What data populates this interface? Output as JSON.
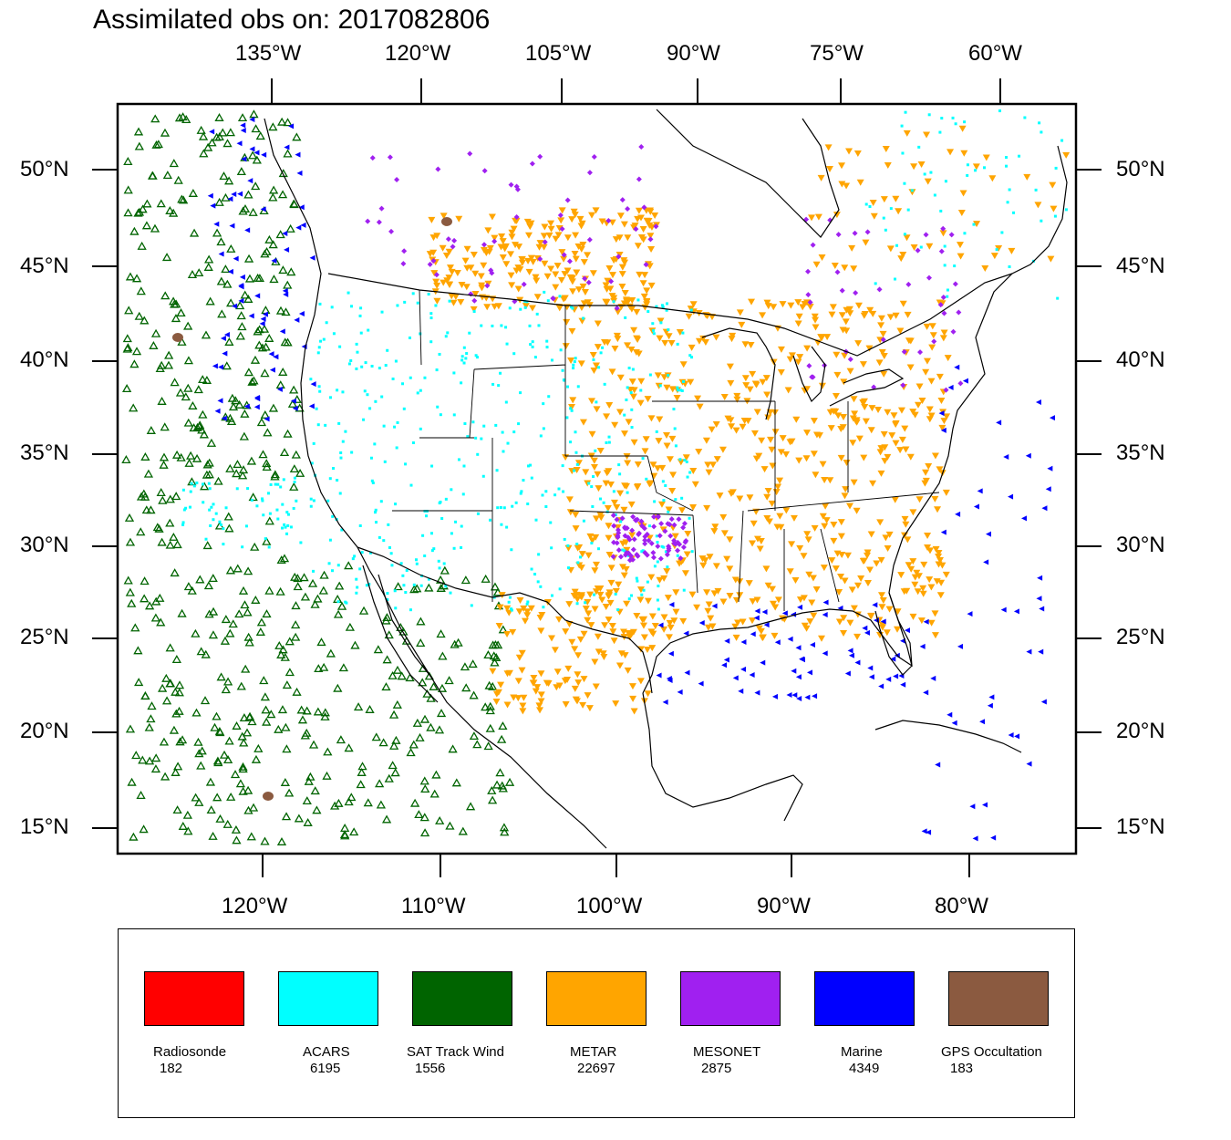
{
  "title": "Assimilated obs on: 2017082806",
  "top_axis_labels": [
    "135°W",
    "120°W",
    "105°W",
    "90°W",
    "75°W",
    "60°W"
  ],
  "bottom_axis_labels": [
    "120°W",
    "110°W",
    "100°W",
    "90°W",
    "80°W"
  ],
  "left_axis_labels": [
    "50°N",
    "45°N",
    "40°N",
    "35°N",
    "30°N",
    "25°N",
    "20°N",
    "15°N"
  ],
  "right_axis_labels": [
    "50°N",
    "45°N",
    "40°N",
    "35°N",
    "30°N",
    "25°N",
    "20°N",
    "15°N"
  ],
  "map": {
    "region": "Continental United States, southern Canada, Mexico and adjacent oceans",
    "lat_range": [
      14,
      54
    ],
    "lon_range": [
      -128,
      -74
    ]
  },
  "legend": [
    {
      "name": "Radiosonde",
      "count": "182",
      "color": "#ff0000",
      "symbol": "none"
    },
    {
      "name": "ACARS",
      "count": "6195",
      "color": "#00ffff",
      "symbol": "square"
    },
    {
      "name": "SAT Track Wind",
      "count": "1556",
      "color": "#006400",
      "symbol": "triangle-up"
    },
    {
      "name": "METAR",
      "count": "22697",
      "color": "#ffa500",
      "symbol": "triangle-down"
    },
    {
      "name": "MESONET",
      "count": "2875",
      "color": "#a020f0",
      "symbol": "diamond"
    },
    {
      "name": "Marine",
      "count": "4349",
      "color": "#0000ff",
      "symbol": "triangle-left"
    },
    {
      "name": "GPS Occultation",
      "count": "183",
      "color": "#8b5a40",
      "symbol": "blob"
    }
  ]
}
